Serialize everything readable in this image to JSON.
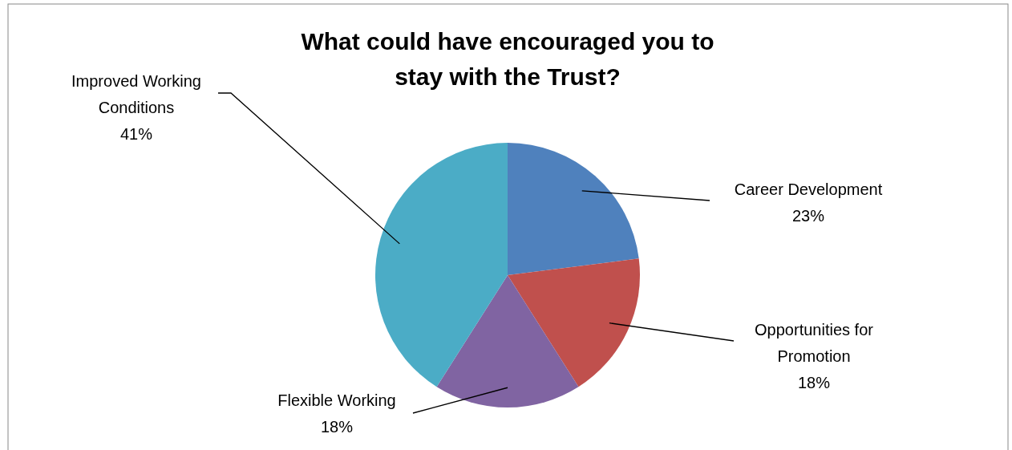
{
  "chart_data": {
    "type": "pie",
    "title": "What could have encouraged you to stay with the Trust?",
    "categories": [
      "Career Development",
      "Opportunities for Promotion",
      "Flexible Working",
      "Improved Working Conditions"
    ],
    "values": [
      23,
      18,
      18,
      41
    ],
    "value_labels": [
      "23%",
      "18%",
      "18%",
      "41%"
    ],
    "colors": [
      "#4f81bd",
      "#c0504d",
      "#8064a2",
      "#4bacc6"
    ]
  }
}
